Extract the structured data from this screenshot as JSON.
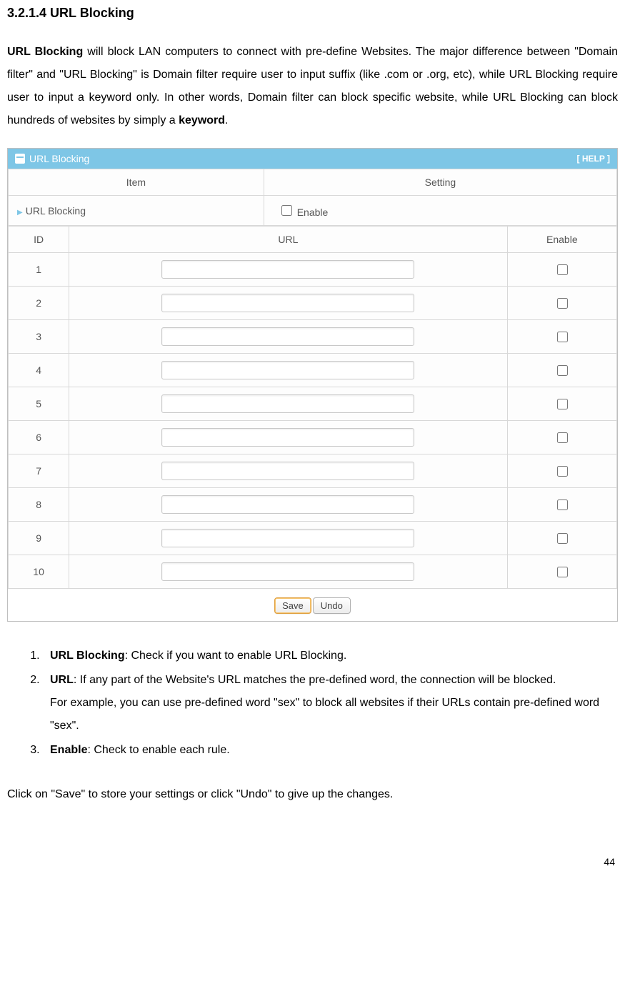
{
  "doc": {
    "heading": "3.2.1.4 URL Blocking",
    "intro_html": "<span class=\"bold\">URL Blocking</span> will block LAN computers to connect with pre-define Websites. The major difference between \"Domain filter\" and \"URL Blocking\" is Domain filter require user to input suffix (like .com or .org, etc), while URL Blocking require user to input a keyword only. In other words, Domain filter can block specific website, while URL Blocking can block hundreds of websites by simply a <span class=\"bold\">keyword</span>.",
    "steps": [
      {
        "term": "URL Blocking",
        "text": ": Check if you want to enable URL Blocking."
      },
      {
        "term": "URL",
        "text": ": If any part of the Website's URL matches the pre-defined word, the connection will be blocked.",
        "extra": "For example, you can use pre-defined word \"sex\" to block all websites if their URLs contain pre-defined word \"sex\"."
      },
      {
        "term": "Enable",
        "text": ": Check to enable each rule."
      }
    ],
    "closing": "Click on \"Save\" to store your settings or click \"Undo\" to give up the changes.",
    "page_number": "44"
  },
  "panel": {
    "title": "URL Blocking",
    "help_label": "[ HELP ]",
    "colors": {
      "header_bg": "#7ec6e6",
      "header_fg": "#ffffff",
      "border": "#d8d8d8"
    },
    "setting_table": {
      "headers": [
        "Item",
        "Setting"
      ],
      "row_label": "URL Blocking",
      "enable_label": "Enable",
      "enable_checked": false
    },
    "url_table": {
      "headers": [
        "ID",
        "URL",
        "Enable"
      ],
      "rows": [
        {
          "id": "1",
          "url": "",
          "enabled": false
        },
        {
          "id": "2",
          "url": "",
          "enabled": false
        },
        {
          "id": "3",
          "url": "",
          "enabled": false
        },
        {
          "id": "4",
          "url": "",
          "enabled": false
        },
        {
          "id": "5",
          "url": "",
          "enabled": false
        },
        {
          "id": "6",
          "url": "",
          "enabled": false
        },
        {
          "id": "7",
          "url": "",
          "enabled": false
        },
        {
          "id": "8",
          "url": "",
          "enabled": false
        },
        {
          "id": "9",
          "url": "",
          "enabled": false
        },
        {
          "id": "10",
          "url": "",
          "enabled": false
        }
      ]
    },
    "buttons": {
      "save": "Save",
      "undo": "Undo"
    }
  }
}
